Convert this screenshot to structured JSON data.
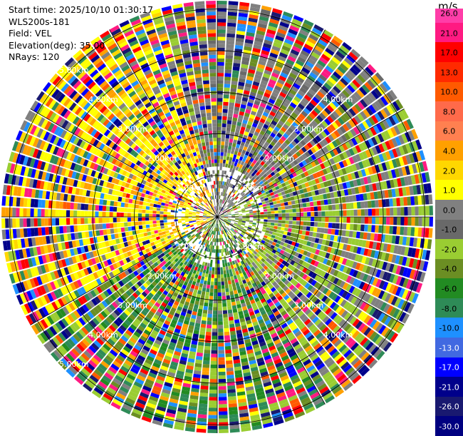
{
  "info": {
    "start_time": "Start time: 2025/10/10 01:30:17",
    "instrument": "WLS200s-181",
    "field": "Field: VEL",
    "elevation": "Elevation(deg): 35.00",
    "nrays": "NRays: 120"
  },
  "colorbar": {
    "unit": "m/s",
    "ticks": [
      "26.0",
      "21.0",
      "17.0",
      "13.0",
      "10.0",
      "8.0",
      "6.0",
      "4.0",
      "2.0",
      "1.0",
      "0.0",
      "-1.0",
      "-2.0",
      "-4.0",
      "-6.0",
      "-8.0",
      "-10.0",
      "-13.0",
      "-17.0",
      "-21.0",
      "-26.0",
      "-30.0"
    ],
    "bins": [
      {
        "color": "#ff3da8"
      },
      {
        "color": "#ff1a82"
      },
      {
        "color": "#ff0000"
      },
      {
        "color": "#ff2a00"
      },
      {
        "color": "#ff5a00"
      },
      {
        "color": "#ff6a4a"
      },
      {
        "color": "#ff8050"
      },
      {
        "color": "#ffa000"
      },
      {
        "color": "#ffd700"
      },
      {
        "color": "#ffff00"
      },
      {
        "color": "#808080"
      },
      {
        "color": "#696969"
      },
      {
        "color": "#9acd32"
      },
      {
        "color": "#6b8e23"
      },
      {
        "color": "#228b22"
      },
      {
        "color": "#2e8b57"
      },
      {
        "color": "#1e90ff"
      },
      {
        "color": "#4169e1"
      },
      {
        "color": "#0000ff"
      },
      {
        "color": "#00008b"
      },
      {
        "color": "#191970"
      },
      {
        "color": "#000080"
      }
    ]
  },
  "chart_data": {
    "type": "heatmap",
    "projection": "polar-ppi",
    "field": "VEL",
    "nrays": 120,
    "range_rings_km": [
      1.0,
      2.0,
      3.0,
      4.0,
      5.0
    ],
    "ring_labels": [
      "1.00km",
      "2.00km",
      "3.00km",
      "4.00km",
      "5.00km"
    ],
    "max_range_km": 5.2,
    "radial_lines_deg": [
      0,
      30,
      60,
      90,
      120,
      150,
      180,
      210,
      240,
      270,
      300,
      330
    ],
    "label_angles_deg": [
      135,
      45,
      315,
      225
    ],
    "sectors": [
      {
        "from_deg": 0,
        "to_deg": 60,
        "dominant": "-1.0 to 0.0 (grey)"
      },
      {
        "from_deg": 60,
        "to_deg": 150,
        "dominant": "-2.0 to -4.0 (olive/yellow-green)"
      },
      {
        "from_deg": 150,
        "to_deg": 240,
        "dominant": "-4.0 to -8.0 (green)"
      },
      {
        "from_deg": 240,
        "to_deg": 330,
        "dominant": "2.0 to 6.0 (yellow/orange)"
      },
      {
        "from_deg": 330,
        "to_deg": 360,
        "dominant": "2.0 to 6.0 (yellow/orange)"
      }
    ]
  }
}
